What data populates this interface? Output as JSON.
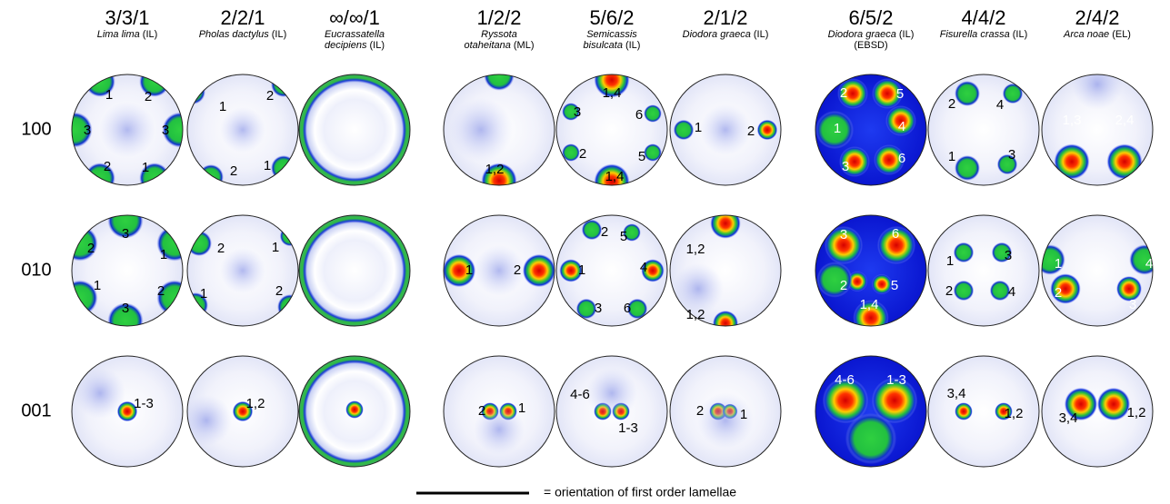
{
  "columns": [
    {
      "ratio": "3/3/1",
      "species": "Lima lima",
      "method": "(IL)"
    },
    {
      "ratio": "2/2/1",
      "species": "Pholas dactylus",
      "method": "(IL)"
    },
    {
      "ratio": "∞/∞/1",
      "species": "Eucrassatella decipiens",
      "method": "(IL)"
    },
    {
      "ratio": "1/2/2",
      "species": "Ryssota otaheitana",
      "method": "(ML)"
    },
    {
      "ratio": "5/6/2",
      "species": "Semicassis bisulcata",
      "method": "(IL)"
    },
    {
      "ratio": "2/1/2",
      "species": "Diodora graeca",
      "method": "(IL)"
    },
    {
      "ratio": "6/5/2",
      "species": "Diodora graeca",
      "method": "(IL)",
      "note": "(EBSD)"
    },
    {
      "ratio": "4/4/2",
      "species": "Fisurella crassa",
      "method": "(IL)"
    },
    {
      "ratio": "2/4/2",
      "species": "Arca noae",
      "method": "(EL)"
    }
  ],
  "rows": [
    {
      "label": "100",
      "panels": [
        [
          "1",
          "2",
          "3",
          "3",
          "2",
          "1"
        ],
        [
          "1",
          "2",
          "2",
          "1"
        ],
        [],
        [
          "1,2"
        ],
        [
          "1,4",
          "3",
          "6",
          "2",
          "5",
          "1,4"
        ],
        [
          "1",
          "2"
        ],
        [
          "2",
          "5",
          "1",
          "4",
          "3",
          "6"
        ],
        [
          "2",
          "4",
          "1",
          "3"
        ],
        [
          "1,3",
          "2,4"
        ]
      ]
    },
    {
      "label": "010",
      "panels": [
        [
          "2",
          "3",
          "1",
          "1",
          "2",
          "3"
        ],
        [
          "2",
          "1",
          "1",
          "2"
        ],
        [],
        [
          "1",
          "2"
        ],
        [
          "2",
          "5",
          "1",
          "4",
          "3",
          "6"
        ],
        [
          "1,2",
          "1,2"
        ],
        [
          "3",
          "6",
          "2",
          "5",
          "1,4"
        ],
        [
          "1",
          "3",
          "2",
          "4"
        ],
        [
          "1",
          "4",
          "2",
          "3"
        ]
      ]
    },
    {
      "label": "001",
      "panels": [
        [
          "1-3"
        ],
        [
          "1,2"
        ],
        [],
        [
          "2",
          "1"
        ],
        [
          "4-6",
          "1-3"
        ],
        [
          "2",
          "1"
        ],
        [
          "4-6",
          "1-3"
        ],
        [
          "3,4",
          "1,2"
        ],
        [
          "3,4",
          "1,2"
        ]
      ]
    }
  ],
  "legend": "= orientation of first order lamellae"
}
